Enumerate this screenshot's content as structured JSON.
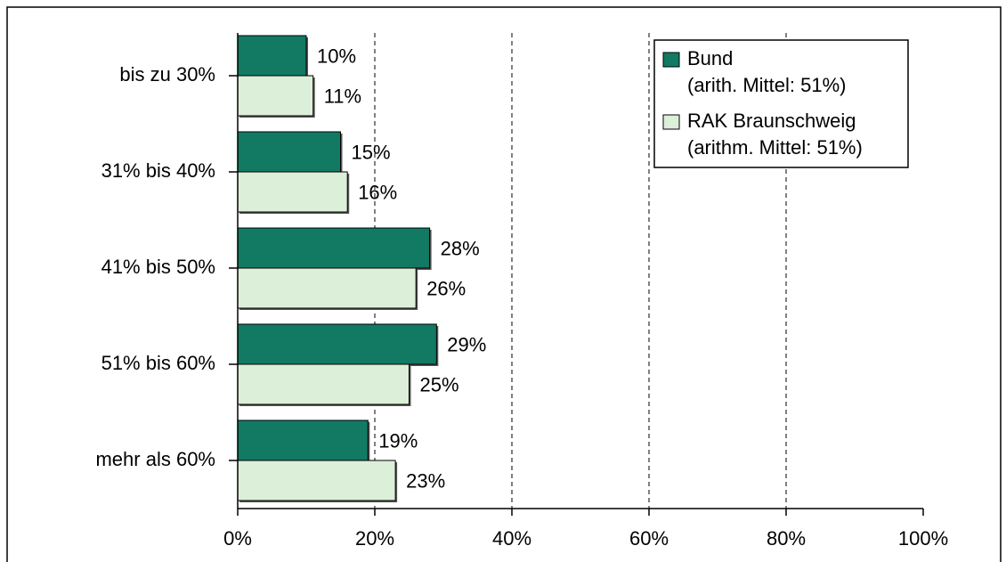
{
  "chart_data": {
    "type": "bar",
    "orientation": "horizontal",
    "categories": [
      "bis zu 30%",
      "31% bis 40%",
      "41% bis 50%",
      "51% bis 60%",
      "mehr als 60%"
    ],
    "series": [
      {
        "name": "Bund",
        "note": "(arith. Mittel: 51%)",
        "color": "#127a63",
        "values": [
          10,
          15,
          28,
          29,
          19
        ],
        "value_labels": [
          "10%",
          "15%",
          "28%",
          "29%",
          "19%"
        ]
      },
      {
        "name": "RAK Braunschweig",
        "note": "(arithm. Mittel: 51%)",
        "color": "#dcefd8",
        "values": [
          11,
          16,
          26,
          25,
          23
        ],
        "value_labels": [
          "11%",
          "16%",
          "26%",
          "25%",
          "23%"
        ]
      }
    ],
    "xlim": [
      0,
      100
    ],
    "xticks": [
      {
        "value": 0,
        "label": "0%"
      },
      {
        "value": 20,
        "label": "20%"
      },
      {
        "value": 40,
        "label": "40%"
      },
      {
        "value": 60,
        "label": "60%"
      },
      {
        "value": 80,
        "label": "80%"
      },
      {
        "value": 100,
        "label": "100%"
      }
    ],
    "grid": true,
    "legend": "upper right"
  }
}
